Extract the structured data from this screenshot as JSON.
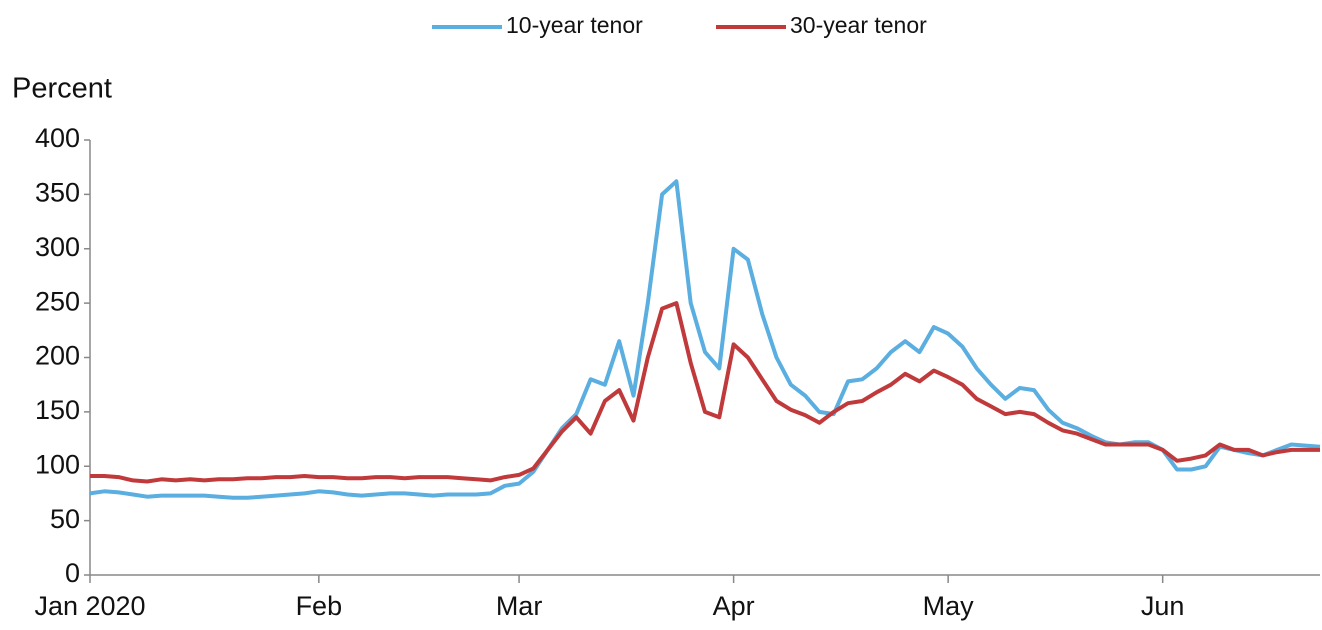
{
  "chart_data": {
    "type": "line",
    "y_axis_label": "Percent",
    "categories": [
      "Jan 2020",
      null,
      null,
      null,
      null,
      null,
      null,
      null,
      null,
      null,
      null,
      null,
      null,
      null,
      null,
      null,
      "Feb",
      null,
      null,
      null,
      null,
      null,
      null,
      null,
      null,
      null,
      null,
      null,
      null,
      null,
      "Mar",
      null,
      null,
      null,
      null,
      null,
      null,
      null,
      null,
      null,
      null,
      null,
      null,
      null,
      null,
      "Apr",
      null,
      null,
      null,
      null,
      null,
      null,
      null,
      null,
      null,
      null,
      null,
      null,
      null,
      null,
      "May",
      null,
      null,
      null,
      null,
      null,
      null,
      null,
      null,
      null,
      null,
      null,
      null,
      null,
      null,
      "Jun",
      null,
      null,
      null,
      null,
      null,
      null,
      null,
      null,
      null,
      null,
      null
    ],
    "series": [
      {
        "name": "10-year tenor",
        "color": "#5aaee0",
        "values": [
          75,
          77,
          76,
          74,
          72,
          73,
          73,
          73,
          73,
          72,
          71,
          71,
          72,
          73,
          74,
          75,
          77,
          76,
          74,
          73,
          74,
          75,
          75,
          74,
          73,
          74,
          74,
          74,
          75,
          82,
          84,
          95,
          115,
          135,
          148,
          180,
          175,
          215,
          165,
          250,
          350,
          362,
          250,
          205,
          190,
          300,
          290,
          240,
          200,
          175,
          165,
          150,
          148,
          178,
          180,
          190,
          205,
          215,
          205,
          228,
          222,
          210,
          190,
          175,
          162,
          172,
          170,
          152,
          140,
          135,
          128,
          122,
          120,
          122,
          122,
          115,
          97,
          97,
          100,
          118,
          115,
          112,
          110,
          115,
          120,
          119,
          118
        ]
      },
      {
        "name": "30-year tenor",
        "color": "#c0393b",
        "values": [
          91,
          91,
          90,
          87,
          86,
          88,
          87,
          88,
          87,
          88,
          88,
          89,
          89,
          90,
          90,
          91,
          90,
          90,
          89,
          89,
          90,
          90,
          89,
          90,
          90,
          90,
          89,
          88,
          87,
          90,
          92,
          98,
          115,
          132,
          145,
          130,
          160,
          170,
          142,
          200,
          245,
          250,
          195,
          150,
          145,
          212,
          200,
          180,
          160,
          152,
          147,
          140,
          150,
          158,
          160,
          168,
          175,
          185,
          178,
          188,
          182,
          175,
          162,
          155,
          148,
          150,
          148,
          140,
          133,
          130,
          125,
          120,
          120,
          120,
          120,
          115,
          105,
          107,
          110,
          120,
          115,
          115,
          110,
          113,
          115,
          115,
          115
        ]
      }
    ],
    "ylim": [
      0,
      400
    ],
    "yticks": [
      0,
      50,
      100,
      150,
      200,
      250,
      300,
      350,
      400
    ],
    "legend": "top"
  }
}
